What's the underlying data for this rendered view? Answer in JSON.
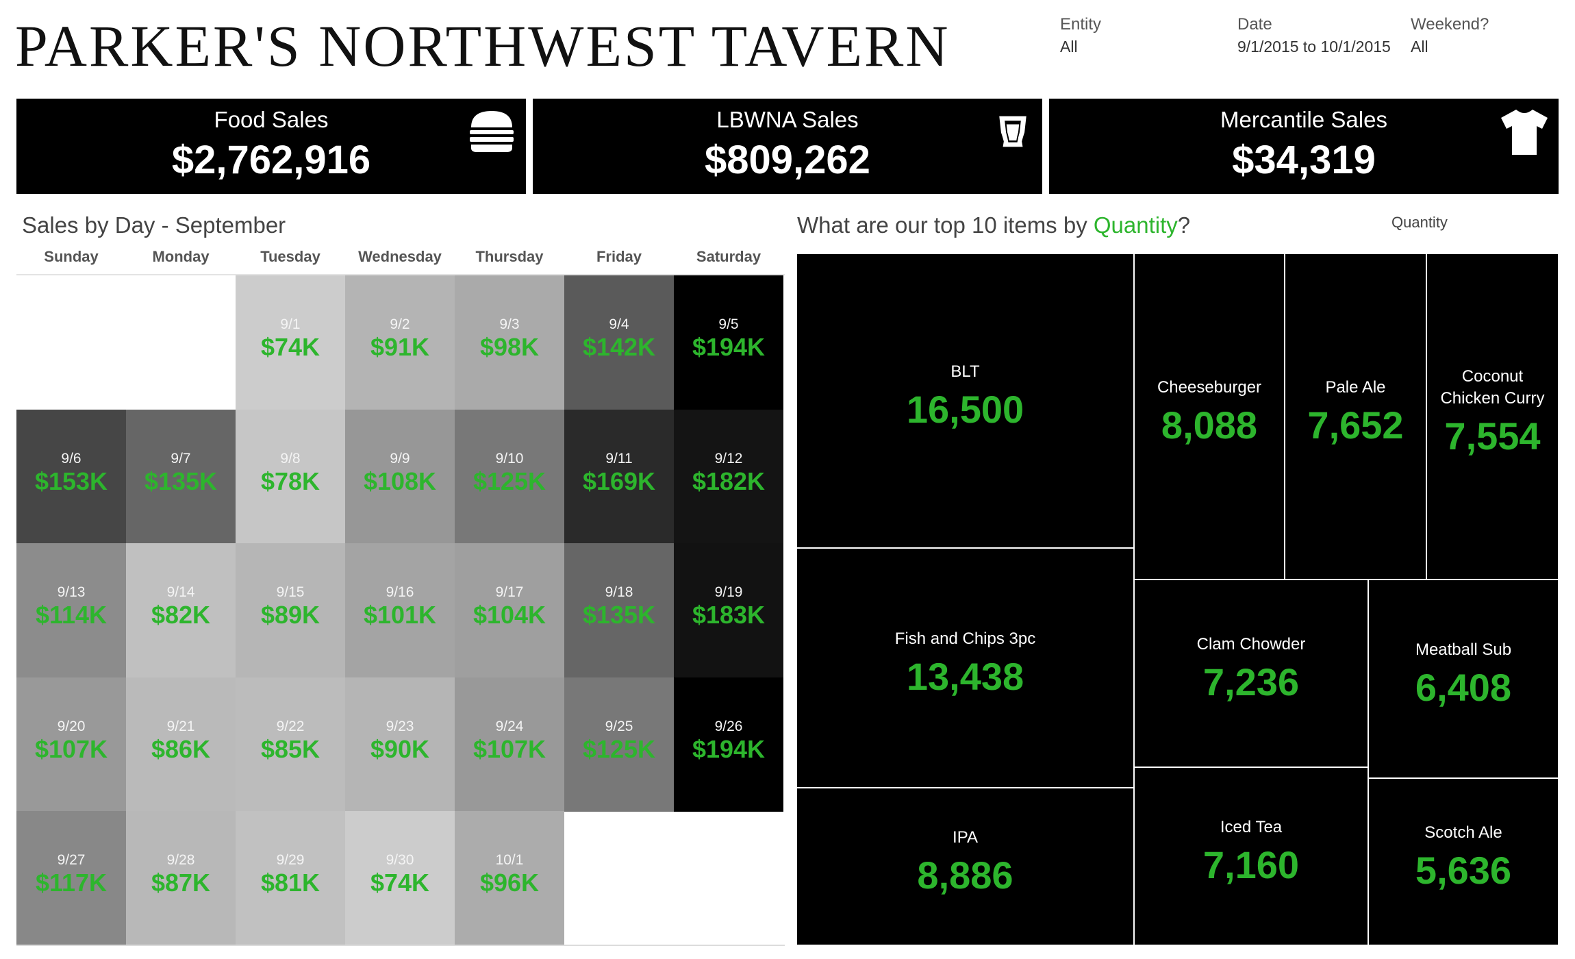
{
  "header": {
    "title": "PARKER'S NORTHWEST TAVERN",
    "filters": [
      {
        "label": "Entity",
        "value": "All"
      },
      {
        "label": "Date",
        "value": "9/1/2015 to 10/1/2015"
      },
      {
        "label": "Weekend?",
        "value": "All"
      }
    ]
  },
  "kpis": [
    {
      "label": "Food Sales",
      "value": "$2,762,916",
      "icon": "burger-icon"
    },
    {
      "label": "LBWNA Sales",
      "value": "$809,262",
      "icon": "beer-glass-icon"
    },
    {
      "label": "Mercantile Sales",
      "value": "$34,319",
      "icon": "tshirt-icon"
    }
  ],
  "calendar": {
    "title": "Sales by Day - September",
    "days": [
      "Sunday",
      "Monday",
      "Tuesday",
      "Wednesday",
      "Thursday",
      "Friday",
      "Saturday"
    ],
    "cells": [
      {
        "date": "9/1",
        "label": "$74K",
        "value": 74,
        "shade": "#cccccc"
      },
      {
        "date": "9/2",
        "label": "$91K",
        "value": 91,
        "shade": "#b4b4b4"
      },
      {
        "date": "9/3",
        "label": "$98K",
        "value": 98,
        "shade": "#aaaaaa"
      },
      {
        "date": "9/4",
        "label": "$142K",
        "value": 142,
        "shade": "#5a5a5a"
      },
      {
        "date": "9/5",
        "label": "$194K",
        "value": 194,
        "shade": "#000000"
      },
      {
        "date": "9/6",
        "label": "$153K",
        "value": 153,
        "shade": "#464646"
      },
      {
        "date": "9/7",
        "label": "$135K",
        "value": 135,
        "shade": "#666666"
      },
      {
        "date": "9/8",
        "label": "$78K",
        "value": 78,
        "shade": "#c6c6c6"
      },
      {
        "date": "9/9",
        "label": "$108K",
        "value": 108,
        "shade": "#979797"
      },
      {
        "date": "9/10",
        "label": "$125K",
        "value": 125,
        "shade": "#787878"
      },
      {
        "date": "9/11",
        "label": "$169K",
        "value": 169,
        "shade": "#2a2a2a"
      },
      {
        "date": "9/12",
        "label": "$182K",
        "value": 182,
        "shade": "#141414"
      },
      {
        "date": "9/13",
        "label": "$114K",
        "value": 114,
        "shade": "#8c8c8c"
      },
      {
        "date": "9/14",
        "label": "$82K",
        "value": 82,
        "shade": "#c0c0c0"
      },
      {
        "date": "9/15",
        "label": "$89K",
        "value": 89,
        "shade": "#b6b6b6"
      },
      {
        "date": "9/16",
        "label": "$101K",
        "value": 101,
        "shade": "#a4a4a4"
      },
      {
        "date": "9/17",
        "label": "$104K",
        "value": 104,
        "shade": "#9f9f9f"
      },
      {
        "date": "9/18",
        "label": "$135K",
        "value": 135,
        "shade": "#666666"
      },
      {
        "date": "9/19",
        "label": "$183K",
        "value": 183,
        "shade": "#121212"
      },
      {
        "date": "9/20",
        "label": "$107K",
        "value": 107,
        "shade": "#999999"
      },
      {
        "date": "9/21",
        "label": "$86K",
        "value": 86,
        "shade": "#bababa"
      },
      {
        "date": "9/22",
        "label": "$85K",
        "value": 85,
        "shade": "#bcbcbc"
      },
      {
        "date": "9/23",
        "label": "$90K",
        "value": 90,
        "shade": "#b5b5b5"
      },
      {
        "date": "9/24",
        "label": "$107K",
        "value": 107,
        "shade": "#999999"
      },
      {
        "date": "9/25",
        "label": "$125K",
        "value": 125,
        "shade": "#787878"
      },
      {
        "date": "9/26",
        "label": "$194K",
        "value": 194,
        "shade": "#000000"
      },
      {
        "date": "9/27",
        "label": "$117K",
        "value": 117,
        "shade": "#888888"
      },
      {
        "date": "9/28",
        "label": "$87K",
        "value": 87,
        "shade": "#b8b8b8"
      },
      {
        "date": "9/29",
        "label": "$81K",
        "value": 81,
        "shade": "#c1c1c1"
      },
      {
        "date": "9/30",
        "label": "$74K",
        "value": 74,
        "shade": "#cccccc"
      },
      {
        "date": "10/1",
        "label": "$96K",
        "value": 96,
        "shade": "#acacac"
      }
    ]
  },
  "treemap": {
    "title_prefix": "What are our top 10 items by ",
    "title_measure": "Quantity",
    "title_suffix": "?",
    "legend_label": "Quantity",
    "items": [
      {
        "name": "BLT",
        "quantity": 16500,
        "label": "16,500"
      },
      {
        "name": "Fish and Chips 3pc",
        "quantity": 13438,
        "label": "13,438"
      },
      {
        "name": "IPA",
        "quantity": 8886,
        "label": "8,886"
      },
      {
        "name": "Cheeseburger",
        "quantity": 8088,
        "label": "8,088"
      },
      {
        "name": "Pale Ale",
        "quantity": 7652,
        "label": "7,652"
      },
      {
        "name": "Coconut Chicken Curry",
        "quantity": 7554,
        "label": "7,554"
      },
      {
        "name": "Clam Chowder",
        "quantity": 7236,
        "label": "7,236"
      },
      {
        "name": "Meatball Sub",
        "quantity": 6408,
        "label": "6,408"
      },
      {
        "name": "Iced Tea",
        "quantity": 7160,
        "label": "7,160"
      },
      {
        "name": "Scotch Ale",
        "quantity": 5636,
        "label": "5,636"
      }
    ]
  },
  "colors": {
    "accent": "#2db52d",
    "card_bg": "#000000",
    "text": "#444444"
  }
}
